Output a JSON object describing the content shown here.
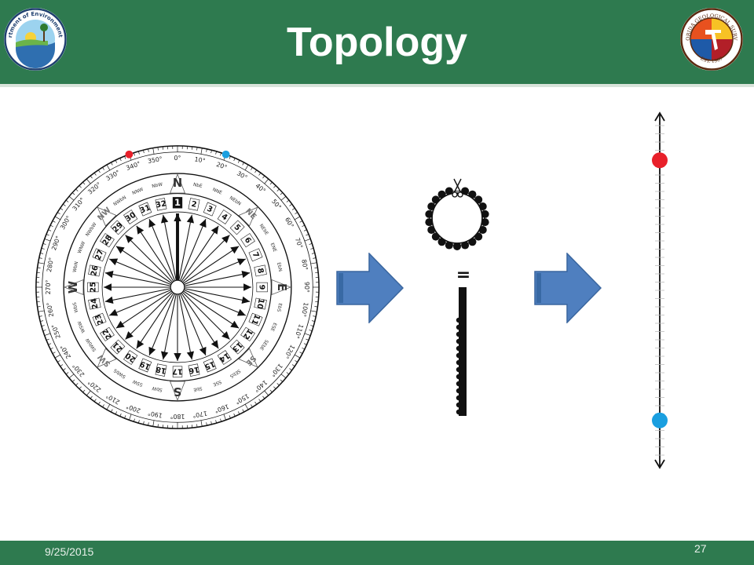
{
  "header": {
    "title": "Topology",
    "bg_color": "#2e7a4f",
    "left_logo_icon": "florida-dep-seal",
    "left_logo_text": "Florida Department of Environmental Protection",
    "right_logo_icon": "florida-geological-survey-seal",
    "right_logo_text": "FLORIDA GEOLOGICAL SURVEY",
    "right_logo_est": "EST. 1907"
  },
  "compass": {
    "cardinals": [
      "N",
      "E",
      "S",
      "W"
    ],
    "intercardinals": [
      "NE",
      "SE",
      "SW",
      "NW"
    ],
    "points": [
      "NbE",
      "NNE",
      "NEbN",
      "NEbE",
      "ENE",
      "EbN",
      "EbS",
      "ESE",
      "SEbE",
      "SEbS",
      "SSE",
      "SbE",
      "SbW",
      "SSW",
      "SWbS",
      "SWbW",
      "WSW",
      "WbS",
      "WbN",
      "WNW",
      "NWbW",
      "NWbN",
      "NNW",
      "NbW"
    ],
    "degree_labels": [
      "0°",
      "10°",
      "20°",
      "30°",
      "40°",
      "50°",
      "60°",
      "70°",
      "80°",
      "90°",
      "100°",
      "110°",
      "120°",
      "130°",
      "140°",
      "150°",
      "160°",
      "170°",
      "180°",
      "190°",
      "200°",
      "210°",
      "220°",
      "230°",
      "240°",
      "250°",
      "260°",
      "270°",
      "280°",
      "290°",
      "300°",
      "310°",
      "320°",
      "330°",
      "340°",
      "350°"
    ],
    "rays": [
      1,
      2,
      3,
      4,
      5,
      6,
      7,
      8,
      9,
      10,
      11,
      12,
      13,
      14,
      15,
      16,
      17,
      18,
      19,
      20,
      21,
      22,
      23,
      24,
      25,
      26,
      27,
      28,
      29,
      30,
      31,
      32
    ],
    "red_marker_deg": 340,
    "blue_marker_deg": 20,
    "red_color": "#e8202a",
    "blue_color": "#1a9fe0"
  },
  "arrows": {
    "fill": "#4f7fbf",
    "stroke": "#3a669f",
    "icon": "right-arrow-icon"
  },
  "equals": "=",
  "number_line": {
    "red_position": 0.13,
    "blue_position": 0.87,
    "red_color": "#e8202a",
    "blue_color": "#1a9fe0"
  },
  "footer": {
    "date": "9/25/2015",
    "page": "27"
  }
}
